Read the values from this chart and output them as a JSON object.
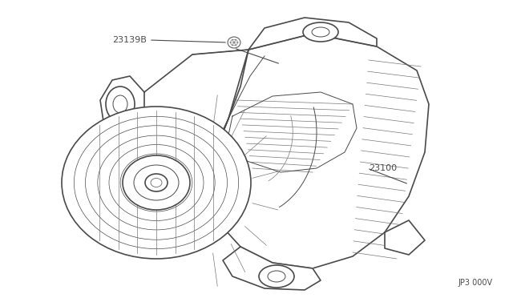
{
  "bg_color": "#ffffff",
  "line_color": "#4a4a4a",
  "line_color_light": "#777777",
  "part_23139B_label": "23139B",
  "part_23100_label": "23100",
  "ref_code": "JP3 000V",
  "figsize": [
    6.4,
    3.72
  ],
  "dpi": 100,
  "img_extent": [
    0,
    640,
    0,
    372
  ]
}
